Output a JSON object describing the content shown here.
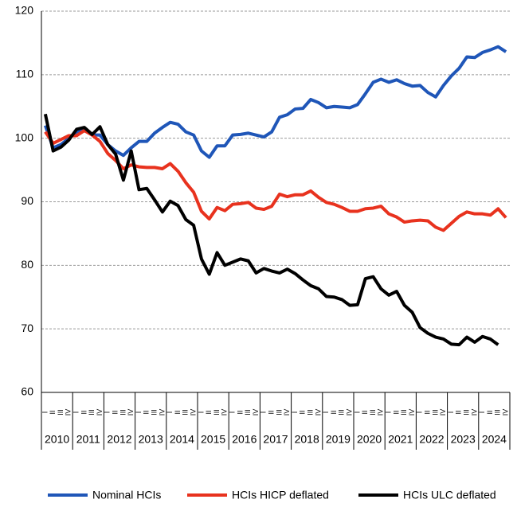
{
  "chart_data": {
    "type": "line",
    "categories": [
      "I",
      "II",
      "III",
      "IV",
      "I",
      "II",
      "III",
      "IV",
      "I",
      "II",
      "III",
      "IV",
      "I",
      "II",
      "III",
      "IV",
      "I",
      "II",
      "III",
      "IV",
      "I",
      "II",
      "III",
      "IV",
      "I",
      "II",
      "III",
      "IV",
      "I",
      "II",
      "III",
      "IV",
      "I",
      "II",
      "III",
      "IV",
      "I",
      "II",
      "III",
      "IV",
      "I",
      "II",
      "III",
      "IV",
      "I",
      "II",
      "III",
      "IV",
      "I",
      "II",
      "III",
      "IV",
      "I",
      "II",
      "III",
      "IV",
      "I",
      "II",
      "III",
      "IV"
    ],
    "years": [
      "2010",
      "2011",
      "2012",
      "2013",
      "2014",
      "2015",
      "2016",
      "2017",
      "2018",
      "2019",
      "2020",
      "2021",
      "2022",
      "2023",
      "2024"
    ],
    "ylim": [
      60,
      120
    ],
    "yticks": [
      60,
      70,
      80,
      90,
      100,
      110,
      120
    ],
    "grid": true,
    "legend": "bottom",
    "series": [
      {
        "name": "Nominal HCIs",
        "color": "#1f56b8",
        "values": [
          102,
          98.5,
          99,
          100,
          101,
          101.5,
          100.5,
          100.5,
          99,
          98,
          97.3,
          98.5,
          99.5,
          99.5,
          100.8,
          101.7,
          102.5,
          102.2,
          101,
          100.5,
          98,
          97,
          98.8,
          98.8,
          100.5,
          100.6,
          100.8,
          100.5,
          100.2,
          101,
          103.3,
          103.7,
          104.6,
          104.7,
          106.1,
          105.6,
          104.8,
          105,
          104.9,
          104.8,
          105.3,
          107,
          108.8,
          109.3,
          108.8,
          109.2,
          108.6,
          108.2,
          108.3,
          107.2,
          106.5,
          108.3,
          109.8,
          111,
          112.8,
          112.7,
          113.5,
          113.9,
          114.4,
          113.6
        ]
      },
      {
        "name": "HCIs HICP deflated",
        "color": "#e8321e",
        "values": [
          101,
          99.2,
          99.8,
          100.4,
          100.4,
          101.2,
          100.5,
          99.5,
          97.6,
          96.5,
          95.2,
          95.8,
          95.5,
          95.4,
          95.4,
          95.2,
          96,
          94.8,
          93,
          91.5,
          88.5,
          87.3,
          89.1,
          88.6,
          89.6,
          89.7,
          89.9,
          89,
          88.8,
          89.3,
          91.2,
          90.8,
          91.1,
          91.1,
          91.7,
          90.7,
          89.9,
          89.6,
          89.1,
          88.5,
          88.5,
          88.9,
          89,
          89.3,
          88.1,
          87.6,
          86.8,
          87,
          87.1,
          87,
          86,
          85.5,
          86.6,
          87.7,
          88.4,
          88.1,
          88.1,
          87.9,
          88.9,
          87.5
        ]
      },
      {
        "name": "HCIs ULC deflated",
        "color": "#000000",
        "values": [
          103.8,
          98,
          98.6,
          99.7,
          101.4,
          101.7,
          100.6,
          101.8,
          99,
          97.5,
          93.4,
          98,
          91.9,
          92.1,
          90.3,
          88.4,
          90.1,
          89.4,
          87.2,
          86.3,
          81,
          78.6,
          82,
          80,
          80.5,
          81,
          80.7,
          78.8,
          79.5,
          79.1,
          78.8,
          79.4,
          78.7,
          77.7,
          76.8,
          76.3,
          75.1,
          75,
          74.6,
          73.7,
          73.8,
          77.9,
          78.2,
          76.3,
          75.3,
          75.9,
          73.7,
          72.6,
          70.2,
          69.3,
          68.7,
          68.4,
          67.6,
          67.5,
          68.7,
          67.9,
          68.8,
          68.4,
          67.5,
          null
        ]
      }
    ]
  }
}
